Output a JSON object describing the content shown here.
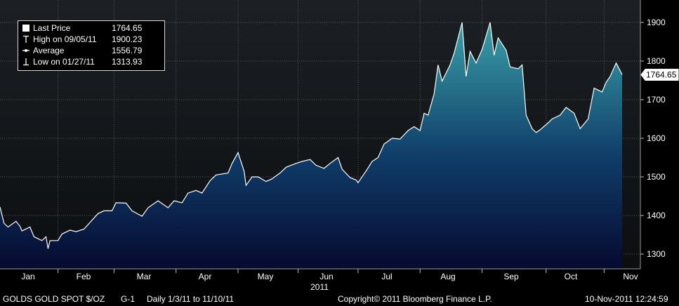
{
  "chart_data": {
    "type": "area",
    "x_labels": [
      "Jan",
      "Feb",
      "Mar",
      "Apr",
      "May",
      "Jun",
      "Jul",
      "Aug",
      "Sep",
      "Oct",
      "Nov"
    ],
    "year_label": "2011",
    "yticks": [
      1300,
      1400,
      1500,
      1600,
      1700,
      1800,
      1900
    ],
    "ylim": [
      1260,
      1930
    ],
    "grid": true,
    "legend_position": "top-left",
    "last_value_tag": "1764.65",
    "series": [
      {
        "name": "GOLDS GOLD SPOT $/OZ",
        "values": [
          {
            "x": "2011-01-03",
            "y": 1422
          },
          {
            "x": "2011-01-05",
            "y": 1380
          },
          {
            "x": "2011-01-07",
            "y": 1370
          },
          {
            "x": "2011-01-11",
            "y": 1385
          },
          {
            "x": "2011-01-13",
            "y": 1372
          },
          {
            "x": "2011-01-14",
            "y": 1360
          },
          {
            "x": "2011-01-18",
            "y": 1370
          },
          {
            "x": "2011-01-20",
            "y": 1345
          },
          {
            "x": "2011-01-24",
            "y": 1335
          },
          {
            "x": "2011-01-26",
            "y": 1345
          },
          {
            "x": "2011-01-27",
            "y": 1313.93
          },
          {
            "x": "2011-01-28",
            "y": 1335
          },
          {
            "x": "2011-02-01",
            "y": 1335
          },
          {
            "x": "2011-02-03",
            "y": 1352
          },
          {
            "x": "2011-02-07",
            "y": 1362
          },
          {
            "x": "2011-02-10",
            "y": 1358
          },
          {
            "x": "2011-02-14",
            "y": 1365
          },
          {
            "x": "2011-02-17",
            "y": 1382
          },
          {
            "x": "2011-02-21",
            "y": 1405
          },
          {
            "x": "2011-02-24",
            "y": 1412
          },
          {
            "x": "2011-02-28",
            "y": 1412
          },
          {
            "x": "2011-03-02",
            "y": 1433
          },
          {
            "x": "2011-03-07",
            "y": 1432
          },
          {
            "x": "2011-03-10",
            "y": 1412
          },
          {
            "x": "2011-03-15",
            "y": 1398
          },
          {
            "x": "2011-03-18",
            "y": 1420
          },
          {
            "x": "2011-03-23",
            "y": 1438
          },
          {
            "x": "2011-03-28",
            "y": 1420
          },
          {
            "x": "2011-03-31",
            "y": 1438
          },
          {
            "x": "2011-04-04",
            "y": 1433
          },
          {
            "x": "2011-04-07",
            "y": 1458
          },
          {
            "x": "2011-04-11",
            "y": 1465
          },
          {
            "x": "2011-04-14",
            "y": 1458
          },
          {
            "x": "2011-04-18",
            "y": 1490
          },
          {
            "x": "2011-04-21",
            "y": 1505
          },
          {
            "x": "2011-04-27",
            "y": 1510
          },
          {
            "x": "2011-04-29",
            "y": 1535
          },
          {
            "x": "2011-05-02",
            "y": 1563
          },
          {
            "x": "2011-05-05",
            "y": 1515
          },
          {
            "x": "2011-05-06",
            "y": 1478
          },
          {
            "x": "2011-05-09",
            "y": 1500
          },
          {
            "x": "2011-05-12",
            "y": 1500
          },
          {
            "x": "2011-05-16",
            "y": 1488
          },
          {
            "x": "2011-05-19",
            "y": 1495
          },
          {
            "x": "2011-05-23",
            "y": 1510
          },
          {
            "x": "2011-05-26",
            "y": 1525
          },
          {
            "x": "2011-05-31",
            "y": 1535
          },
          {
            "x": "2011-06-03",
            "y": 1540
          },
          {
            "x": "2011-06-07",
            "y": 1545
          },
          {
            "x": "2011-06-10",
            "y": 1530
          },
          {
            "x": "2011-06-14",
            "y": 1522
          },
          {
            "x": "2011-06-17",
            "y": 1535
          },
          {
            "x": "2011-06-21",
            "y": 1550
          },
          {
            "x": "2011-06-23",
            "y": 1520
          },
          {
            "x": "2011-06-27",
            "y": 1498
          },
          {
            "x": "2011-06-30",
            "y": 1492
          },
          {
            "x": "2011-07-01",
            "y": 1485
          },
          {
            "x": "2011-07-05",
            "y": 1515
          },
          {
            "x": "2011-07-08",
            "y": 1540
          },
          {
            "x": "2011-07-11",
            "y": 1550
          },
          {
            "x": "2011-07-14",
            "y": 1585
          },
          {
            "x": "2011-07-18",
            "y": 1600
          },
          {
            "x": "2011-07-22",
            "y": 1598
          },
          {
            "x": "2011-07-26",
            "y": 1620
          },
          {
            "x": "2011-07-29",
            "y": 1630
          },
          {
            "x": "2011-08-01",
            "y": 1620
          },
          {
            "x": "2011-08-03",
            "y": 1665
          },
          {
            "x": "2011-08-05",
            "y": 1660
          },
          {
            "x": "2011-08-08",
            "y": 1715
          },
          {
            "x": "2011-08-10",
            "y": 1790
          },
          {
            "x": "2011-08-12",
            "y": 1748
          },
          {
            "x": "2011-08-16",
            "y": 1790
          },
          {
            "x": "2011-08-18",
            "y": 1820
          },
          {
            "x": "2011-08-22",
            "y": 1900
          },
          {
            "x": "2011-08-24",
            "y": 1760
          },
          {
            "x": "2011-08-26",
            "y": 1825
          },
          {
            "x": "2011-08-29",
            "y": 1795
          },
          {
            "x": "2011-09-01",
            "y": 1830
          },
          {
            "x": "2011-09-05",
            "y": 1900.23
          },
          {
            "x": "2011-09-07",
            "y": 1815
          },
          {
            "x": "2011-09-09",
            "y": 1860
          },
          {
            "x": "2011-09-13",
            "y": 1828
          },
          {
            "x": "2011-09-15",
            "y": 1785
          },
          {
            "x": "2011-09-19",
            "y": 1780
          },
          {
            "x": "2011-09-21",
            "y": 1790
          },
          {
            "x": "2011-09-23",
            "y": 1660
          },
          {
            "x": "2011-09-26",
            "y": 1625
          },
          {
            "x": "2011-09-28",
            "y": 1615
          },
          {
            "x": "2011-09-30",
            "y": 1622
          },
          {
            "x": "2011-10-04",
            "y": 1640
          },
          {
            "x": "2011-10-06",
            "y": 1650
          },
          {
            "x": "2011-10-10",
            "y": 1660
          },
          {
            "x": "2011-10-13",
            "y": 1680
          },
          {
            "x": "2011-10-17",
            "y": 1665
          },
          {
            "x": "2011-10-20",
            "y": 1625
          },
          {
            "x": "2011-10-24",
            "y": 1650
          },
          {
            "x": "2011-10-27",
            "y": 1730
          },
          {
            "x": "2011-10-31",
            "y": 1720
          },
          {
            "x": "2011-11-02",
            "y": 1745
          },
          {
            "x": "2011-11-04",
            "y": 1760
          },
          {
            "x": "2011-11-07",
            "y": 1795
          },
          {
            "x": "2011-11-09",
            "y": 1775
          },
          {
            "x": "2011-11-10",
            "y": 1764.65
          }
        ]
      }
    ]
  },
  "legend": {
    "last_price": {
      "label": "Last Price",
      "value": "1764.65"
    },
    "high": {
      "label": "High on 09/05/11",
      "value": "1900.23"
    },
    "average": {
      "label": "Average",
      "value": "1556.79"
    },
    "low": {
      "label": "Low on 01/27/11",
      "value": "1313.93"
    }
  },
  "footer": {
    "ticker": "GOLDS  GOLD SPOT $/OZ",
    "chart_id": "G-1",
    "period": "Daily  1/3/11 to 11/10/11",
    "copyright": "Copyright© 2011 Bloomberg Finance L.P.",
    "timestamp": "10-Nov-2011 12:24:59"
  },
  "colors": {
    "fill_top": "#3aa0a8",
    "fill_bottom": "#060a30",
    "line": "#ffffff",
    "background_top": "#1c2024",
    "background_bottom": "#0c0e10",
    "grid": "#555b60"
  }
}
